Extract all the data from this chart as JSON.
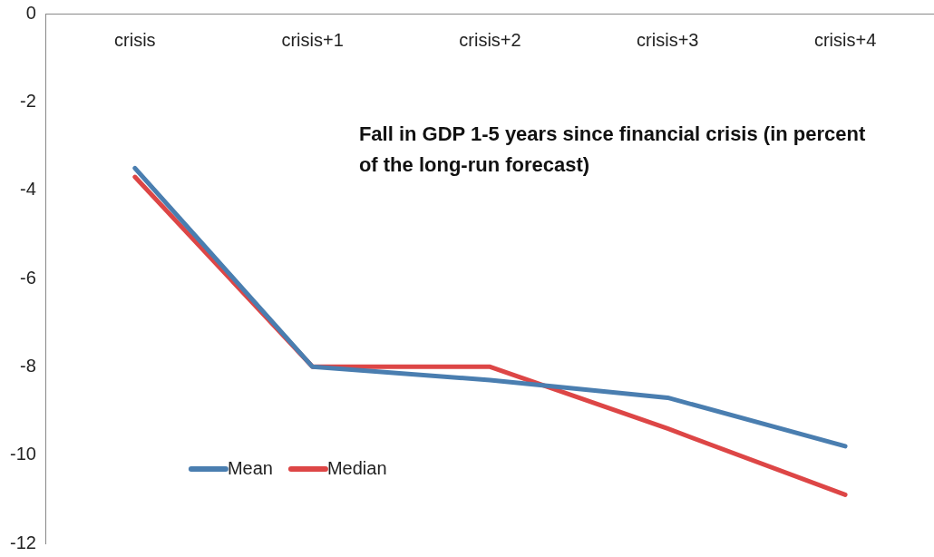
{
  "chart_data": {
    "type": "line",
    "title": "Fall in GDP 1-5 years since financial crisis (in percent of the long-run forecast)",
    "categories": [
      "crisis",
      "crisis+1",
      "crisis+2",
      "crisis+3",
      "crisis+4"
    ],
    "series": [
      {
        "name": "Mean",
        "color": "#4a7eb0",
        "values": [
          -3.5,
          -8.0,
          -8.3,
          -8.7,
          -9.8
        ]
      },
      {
        "name": "Median",
        "color": "#dd4646",
        "values": [
          -3.7,
          -8.0,
          -8.0,
          -9.4,
          -10.9
        ]
      }
    ],
    "ylim": [
      -12,
      0
    ],
    "yticks": [
      -12,
      -10,
      -8,
      -6,
      -4,
      -2,
      0
    ],
    "grid": false,
    "legend": "bottom left",
    "marker": "none",
    "line_style": "solid"
  }
}
